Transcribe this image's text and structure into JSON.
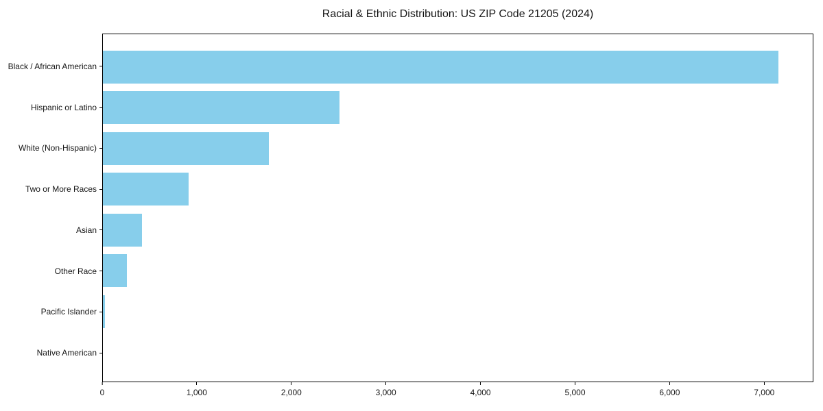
{
  "title": "Racial & Ethnic Distribution: US ZIP Code 21205 (2024)",
  "chart_data": {
    "type": "bar",
    "orientation": "horizontal",
    "title": "Racial & Ethnic Distribution: US ZIP Code 21205 (2024)",
    "categories": [
      "Black / African American",
      "Hispanic or Latino",
      "White (Non-Hispanic)",
      "Two or More Races",
      "Asian",
      "Other Race",
      "Pacific Islander",
      "Native American"
    ],
    "values": [
      7160,
      2510,
      1760,
      905,
      415,
      255,
      22,
      0
    ],
    "xlabel": "",
    "ylabel": "",
    "xlim": [
      0,
      7520
    ],
    "xticks": [
      0,
      1000,
      2000,
      3000,
      4000,
      5000,
      6000,
      7000
    ],
    "xtick_labels": [
      "0",
      "1,000",
      "2,000",
      "3,000",
      "4,000",
      "5,000",
      "6,000",
      "7,000"
    ],
    "bar_color": "#87CEEB",
    "grid": false,
    "legend": "none",
    "frame": "box"
  },
  "colors": {
    "bar": "#87CEEB",
    "axis": "#000000",
    "text": "#151515",
    "background": "#ffffff"
  }
}
